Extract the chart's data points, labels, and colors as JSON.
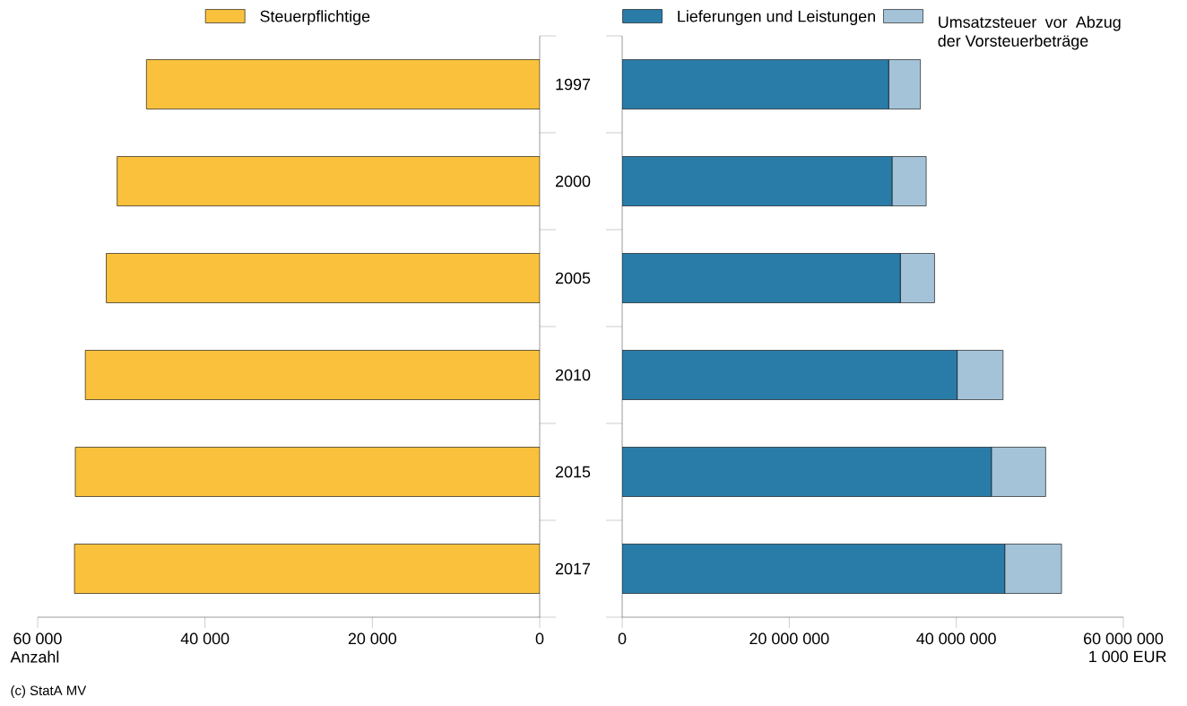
{
  "chart_data": [
    {
      "type": "bar",
      "orientation": "horizontal",
      "categories": [
        "1997",
        "2000",
        "2005",
        "2010",
        "2015",
        "2017"
      ],
      "series": [
        {
          "name": "Steuerpflichtige",
          "color": "#fac13c",
          "values": [
            47000,
            50500,
            51800,
            54300,
            55500,
            55600
          ]
        }
      ],
      "xlim": [
        60000,
        0
      ],
      "xticks": [
        {
          "value": 60000,
          "label": "60 000"
        },
        {
          "value": 40000,
          "label": "40 000"
        },
        {
          "value": 20000,
          "label": "20 000"
        },
        0
      ],
      "xlabel": "Anzahl",
      "legend": "top",
      "tick_labels": "x",
      "annotations": [
        "(c) StatA MV"
      ]
    },
    {
      "type": "bar",
      "orientation": "horizontal",
      "stacked": true,
      "categories": [
        "1997",
        "2000",
        "2005",
        "2010",
        "2015",
        "2017"
      ],
      "series": [
        {
          "name": "Lieferungen und Leistungen",
          "color": "#2a7ca8",
          "values": [
            31900000,
            32300000,
            33300000,
            40100000,
            44200000,
            45800000
          ]
        },
        {
          "name": "Umsatzsteuer vor Abzug der Vorsteuerbeträge",
          "color": "#a4c3d8",
          "values": [
            3800000,
            4100000,
            4100000,
            5500000,
            6500000,
            6800000
          ]
        }
      ],
      "xlim": [
        0,
        60000000
      ],
      "xticks": [
        0,
        {
          "value": 20000000,
          "label": "20 000 000"
        },
        {
          "value": 40000000,
          "label": "40 000 000"
        },
        {
          "value": 60000000,
          "label": "60 000 000"
        }
      ],
      "xlabel": "1 000 EUR",
      "legend": "top"
    }
  ]
}
